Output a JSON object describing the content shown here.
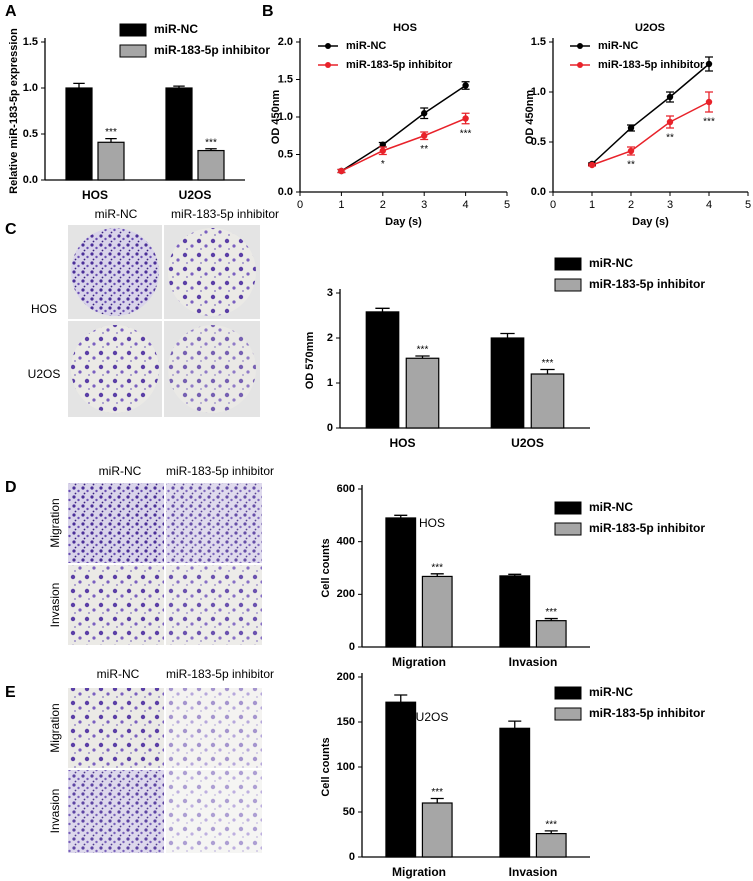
{
  "panel_labels": [
    "A",
    "B",
    "C",
    "D",
    "E"
  ],
  "panels": {
    "C": {
      "columns": [
        "miR-NC",
        "miR-183-5p inhibitor"
      ],
      "rows": [
        "HOS",
        "U2OS"
      ]
    },
    "D": {
      "columns": [
        "miR-NC",
        "miR-183-5p inhibitor"
      ],
      "rows": [
        "Migration",
        "Invasion"
      ]
    },
    "E": {
      "columns": [
        "miR-NC",
        "miR-183-5p inhibitor"
      ],
      "rows": [
        "Migration",
        "Invasion"
      ]
    }
  },
  "chart_data": [
    {
      "type": "bar",
      "ylabel": "Relative miR-183-5p expression",
      "categories": [
        "HOS",
        "U2OS"
      ],
      "series": [
        {
          "name": "miR-NC",
          "color": "#000000",
          "values": [
            1.0,
            1.0
          ],
          "errors": [
            0.05,
            0.02
          ]
        },
        {
          "name": "miR-183-5p inhibitor",
          "color": "#a6a6a6",
          "values": [
            0.41,
            0.32
          ],
          "errors": [
            0.04,
            0.02
          ],
          "annotations": [
            "***",
            "***"
          ]
        }
      ],
      "ylim": [
        0,
        1.5
      ],
      "yticks": [
        {
          "value": 0,
          "label": "0.0"
        },
        0.5,
        {
          "value": 1,
          "label": "1.0"
        },
        1.5
      ]
    },
    {
      "type": "line",
      "title": "HOS",
      "xlabel": "Day (s)",
      "ylabel": "OD 450nm",
      "x": [
        1,
        2,
        3,
        4
      ],
      "series": [
        {
          "name": "miR-NC",
          "color": "#000000",
          "values": [
            0.28,
            0.63,
            1.05,
            1.42
          ],
          "errors": [
            0.02,
            0.03,
            0.07,
            0.05
          ]
        },
        {
          "name": "miR-183-5p inhibitor",
          "color": "#e8222a",
          "values": [
            0.28,
            0.55,
            0.75,
            0.98
          ],
          "errors": [
            0.02,
            0.05,
            0.05,
            0.07
          ],
          "annotations": [
            null,
            "*",
            "**",
            "***"
          ]
        }
      ],
      "xlim": [
        0,
        5
      ],
      "xticks": [
        0,
        1,
        2,
        3,
        4,
        5
      ],
      "ylim": [
        0,
        2
      ],
      "yticks": [
        {
          "value": 0,
          "label": "0.0"
        },
        0.5,
        {
          "value": 1,
          "label": "1.0"
        },
        1.5,
        {
          "value": 2,
          "label": "2.0"
        }
      ]
    },
    {
      "type": "line",
      "title": "U2OS",
      "xlabel": "Day (s)",
      "ylabel": "OD 450nm",
      "x": [
        1,
        2,
        3,
        4
      ],
      "series": [
        {
          "name": "miR-NC",
          "color": "#000000",
          "values": [
            0.28,
            0.64,
            0.95,
            1.28
          ],
          "errors": [
            0.01,
            0.03,
            0.05,
            0.07
          ]
        },
        {
          "name": "miR-183-5p inhibitor",
          "color": "#e8222a",
          "values": [
            0.27,
            0.41,
            0.7,
            0.9
          ],
          "errors": [
            0.01,
            0.04,
            0.06,
            0.1
          ],
          "annotations": [
            null,
            "**",
            "**",
            "***"
          ]
        }
      ],
      "xlim": [
        0,
        5
      ],
      "xticks": [
        0,
        1,
        2,
        3,
        4,
        5
      ],
      "ylim": [
        0,
        1.5
      ],
      "yticks": [
        {
          "value": 0,
          "label": "0.0"
        },
        0.5,
        {
          "value": 1,
          "label": "1.0"
        },
        1.5
      ]
    },
    {
      "type": "bar",
      "ylabel": "OD 570mm",
      "categories": [
        "HOS",
        "U2OS"
      ],
      "series": [
        {
          "name": "miR-NC",
          "color": "#000000",
          "values": [
            2.58,
            2.0
          ],
          "errors": [
            0.08,
            0.1
          ]
        },
        {
          "name": "miR-183-5p inhibitor",
          "color": "#a6a6a6",
          "values": [
            1.55,
            1.2
          ],
          "errors": [
            0.05,
            0.1
          ],
          "annotations": [
            "***",
            "***"
          ]
        }
      ],
      "ylim": [
        0,
        3
      ],
      "yticks": [
        0,
        1,
        2,
        3
      ]
    },
    {
      "type": "bar",
      "title": "HOS",
      "ylabel": "Cell counts",
      "categories": [
        "Migration",
        "Invasion"
      ],
      "series": [
        {
          "name": "miR-NC",
          "color": "#000000",
          "values": [
            490,
            270
          ],
          "errors": [
            10,
            6
          ]
        },
        {
          "name": "miR-183-5p inhibitor",
          "color": "#a6a6a6",
          "values": [
            268,
            100
          ],
          "errors": [
            10,
            8
          ],
          "annotations": [
            "***",
            "***"
          ]
        }
      ],
      "ylim": [
        0,
        600
      ],
      "yticks": [
        0,
        200,
        400,
        600
      ]
    },
    {
      "type": "bar",
      "title": "U2OS",
      "ylabel": "Cell counts",
      "categories": [
        "Migration",
        "Invasion"
      ],
      "series": [
        {
          "name": "miR-NC",
          "color": "#000000",
          "values": [
            172,
            143
          ],
          "errors": [
            8,
            8
          ]
        },
        {
          "name": "miR-183-5p inhibitor",
          "color": "#a6a6a6",
          "values": [
            60,
            26
          ],
          "errors": [
            5,
            3
          ],
          "annotations": [
            "***",
            "***"
          ]
        }
      ],
      "ylim": [
        0,
        200
      ],
      "yticks": [
        0,
        50,
        100,
        150,
        200
      ]
    }
  ]
}
